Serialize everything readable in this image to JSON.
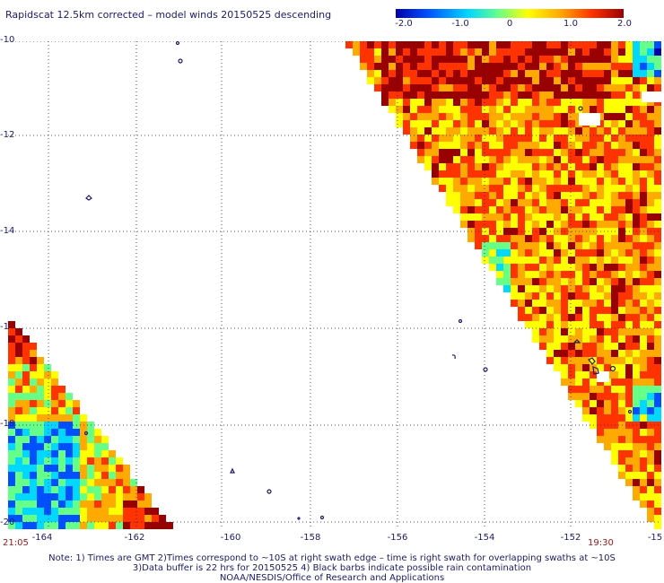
{
  "title": "Rapidscat 12.5km corrected – model winds 20150525 descending",
  "colorbar": {
    "ticks": [
      "-2.0",
      "-1.0",
      "0",
      "1.0",
      "2.0"
    ],
    "colors": [
      "#0000aa",
      "#0050ff",
      "#00d8ff",
      "#66ff88",
      "#ffff00",
      "#ffaa00",
      "#ff3300",
      "#990000"
    ]
  },
  "axes": {
    "x_labels": [
      "-164",
      "-162",
      "-160",
      "-158",
      "-156",
      "-154",
      "-152",
      "-15"
    ],
    "y_labels": [
      "-10",
      "-12",
      "-14",
      "-1",
      "-18",
      "-20"
    ]
  },
  "times": {
    "left": "21:05",
    "right": "19:30"
  },
  "notes": [
    "Note: 1) Times are GMT 2)Times correspond to ~10S at right swath edge – time is right swath for overlapping swaths at ~10S",
    "3)Data buffer is 22 hrs for 20150525 4) Black barbs indicate possible rain contamination",
    "NOAA/NESDIS/Office of Research and Applications"
  ]
}
